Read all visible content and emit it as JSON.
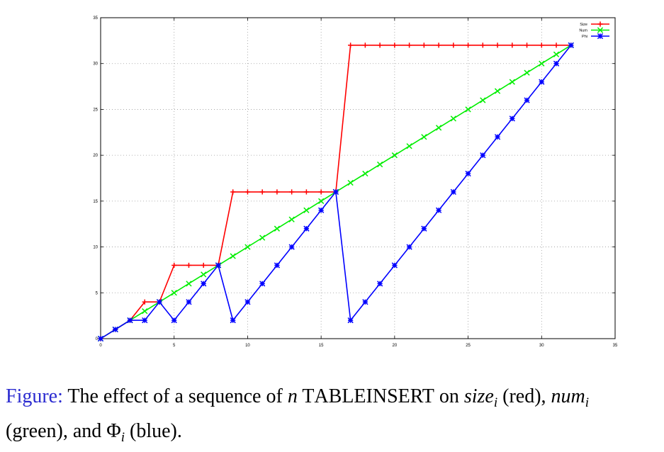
{
  "chart_data": {
    "type": "line",
    "xlim": [
      0,
      35
    ],
    "ylim": [
      0,
      35
    ],
    "xticks": [
      0,
      5,
      10,
      15,
      20,
      25,
      30,
      35
    ],
    "yticks": [
      0,
      5,
      10,
      15,
      20,
      25,
      30,
      35
    ],
    "grid": true,
    "legend_position": "top-right",
    "x": [
      0,
      1,
      2,
      3,
      4,
      5,
      6,
      7,
      8,
      9,
      10,
      11,
      12,
      13,
      14,
      15,
      16,
      17,
      18,
      19,
      20,
      21,
      22,
      23,
      24,
      25,
      26,
      27,
      28,
      29,
      30,
      31,
      32
    ],
    "series": [
      {
        "name": "Size",
        "color": "#ff0000",
        "marker": "plus",
        "values": [
          0,
          1,
          2,
          4,
          4,
          8,
          8,
          8,
          8,
          16,
          16,
          16,
          16,
          16,
          16,
          16,
          16,
          32,
          32,
          32,
          32,
          32,
          32,
          32,
          32,
          32,
          32,
          32,
          32,
          32,
          32,
          32,
          32
        ]
      },
      {
        "name": "Num",
        "color": "#00ee00",
        "marker": "x",
        "values": [
          0,
          1,
          2,
          3,
          4,
          5,
          6,
          7,
          8,
          9,
          10,
          11,
          12,
          13,
          14,
          15,
          16,
          17,
          18,
          19,
          20,
          21,
          22,
          23,
          24,
          25,
          26,
          27,
          28,
          29,
          30,
          31,
          32
        ]
      },
      {
        "name": "Phi",
        "color": "#0000ff",
        "marker": "star",
        "values": [
          0,
          1,
          2,
          2,
          4,
          2,
          4,
          6,
          8,
          2,
          4,
          6,
          8,
          10,
          12,
          14,
          16,
          2,
          4,
          6,
          8,
          10,
          12,
          14,
          16,
          18,
          20,
          22,
          24,
          26,
          28,
          30,
          32
        ]
      }
    ]
  },
  "caption": {
    "label": "Figure:",
    "text_1": " The effect of a sequence of ",
    "n": "n",
    "table": "T",
    "able": "ABLE",
    "ins": "I",
    "nsert": "NSERT",
    "text_2": " on ",
    "size": "size",
    "sub_i": "i",
    "text_red": " (red), ",
    "num": "num",
    "text_green": " (green), and ",
    "phi": "Φ",
    "text_blue": " (blue)."
  }
}
